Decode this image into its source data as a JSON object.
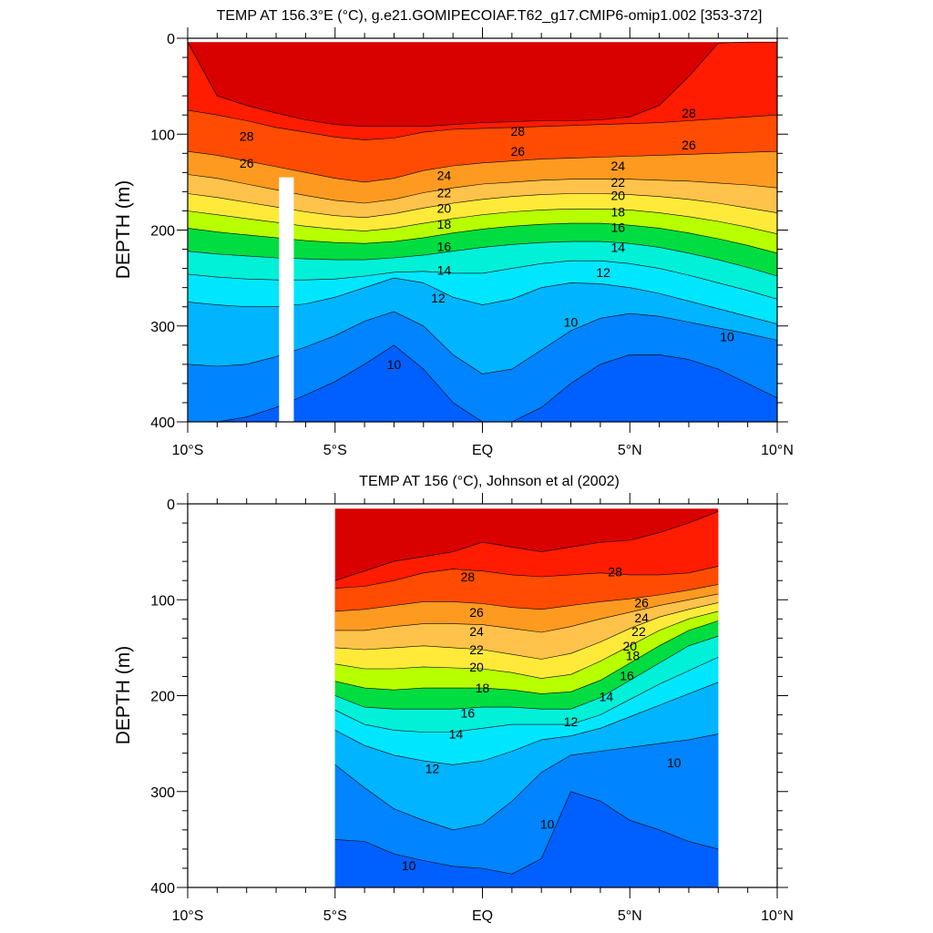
{
  "panels": [
    {
      "title": "TEMP AT 156.3°E (°C), g.e21.GOMIPECOIAF.T62_g17.CMIP6-omip1.002 [353-372]",
      "ylabel": "DEPTH (m)",
      "yticks": [
        "0",
        "100",
        "200",
        "300",
        "400"
      ],
      "xticks": [
        "10°S",
        "5°S",
        "EQ",
        "5°N",
        "10°N"
      ]
    },
    {
      "title": "TEMP AT 156 (°C), Johnson et al (2002)",
      "ylabel": "DEPTH (m)",
      "yticks": [
        "0",
        "100",
        "200",
        "300",
        "400"
      ],
      "xticks": [
        "10°S",
        "5°S",
        "EQ",
        "5°N",
        "10°N"
      ]
    }
  ],
  "chart_data": [
    {
      "type": "heatmap",
      "title": "TEMP AT 156.3°E (°C), g.e21.GOMIPECOIAF.T62_g17.CMIP6-omip1.002 [353-372]",
      "xlabel": "",
      "ylabel": "DEPTH (m)",
      "xlim": [
        -10,
        10
      ],
      "ylim": [
        0,
        400
      ],
      "y_reversed": true,
      "x_tick_labels": [
        "10°S",
        "5°S",
        "EQ",
        "5°N",
        "10°N"
      ],
      "contour_levels": [
        9,
        10,
        11,
        12,
        13,
        14,
        15,
        16,
        17,
        18,
        19,
        20,
        21,
        22,
        23,
        24,
        25,
        26,
        27,
        28,
        29
      ],
      "x": [
        -10,
        -9,
        -8,
        -7,
        -6,
        -5,
        -4,
        -3,
        -2,
        -1,
        0,
        1,
        2,
        3,
        4,
        5,
        6,
        7,
        8,
        9,
        10
      ],
      "isotherms": [
        {
          "temp": 29,
          "depth": [
            4,
            60,
            70,
            78,
            85,
            90,
            92,
            92,
            92,
            90,
            88,
            87,
            86,
            86,
            85,
            82,
            70,
            40,
            5,
            0,
            0
          ]
        },
        {
          "temp": 28,
          "depth": [
            75,
            80,
            86,
            93,
            98,
            103,
            106,
            104,
            98,
            95,
            94,
            93,
            92,
            91,
            90,
            89,
            88,
            86,
            84,
            82,
            80
          ]
        },
        {
          "temp": 26,
          "depth": [
            118,
            122,
            128,
            134,
            140,
            146,
            150,
            146,
            138,
            133,
            130,
            128,
            126,
            125,
            124,
            123,
            122,
            121,
            120,
            119,
            118
          ]
        },
        {
          "temp": 24,
          "depth": [
            142,
            146,
            152,
            158,
            164,
            169,
            172,
            168,
            161,
            156,
            152,
            150,
            148,
            147,
            147,
            147,
            148,
            149,
            151,
            153,
            156
          ]
        },
        {
          "temp": 22,
          "depth": [
            162,
            166,
            171,
            176,
            181,
            185,
            187,
            183,
            177,
            172,
            168,
            165,
            163,
            162,
            162,
            163,
            165,
            168,
            172,
            177,
            182
          ]
        },
        {
          "temp": 20,
          "depth": [
            180,
            184,
            188,
            192,
            196,
            199,
            201,
            198,
            193,
            188,
            184,
            181,
            179,
            178,
            178,
            179,
            182,
            186,
            191,
            197,
            204
          ]
        },
        {
          "temp": 18,
          "depth": [
            198,
            202,
            205,
            208,
            211,
            213,
            214,
            212,
            208,
            203,
            199,
            196,
            194,
            193,
            193,
            195,
            198,
            203,
            209,
            216,
            224
          ]
        },
        {
          "temp": 16,
          "depth": [
            222,
            225,
            227,
            229,
            230,
            231,
            231,
            229,
            226,
            222,
            218,
            215,
            213,
            212,
            212,
            214,
            218,
            224,
            231,
            239,
            248
          ]
        },
        {
          "temp": 14,
          "depth": [
            246,
            249,
            251,
            252,
            252,
            251,
            248,
            244,
            243,
            245,
            245,
            240,
            235,
            232,
            232,
            235,
            240,
            247,
            255,
            263,
            272
          ]
        },
        {
          "temp": 12,
          "depth": [
            275,
            278,
            280,
            280,
            277,
            270,
            260,
            250,
            255,
            270,
            278,
            272,
            260,
            255,
            256,
            260,
            266,
            274,
            282,
            290,
            298
          ]
        },
        {
          "temp": 10,
          "depth": [
            340,
            342,
            340,
            332,
            322,
            310,
            295,
            285,
            300,
            330,
            350,
            345,
            325,
            305,
            292,
            287,
            290,
            296,
            302,
            308,
            315
          ]
        },
        {
          "temp": 9,
          "depth": [
            400,
            400,
            395,
            385,
            372,
            358,
            340,
            320,
            345,
            380,
            400,
            400,
            385,
            360,
            340,
            330,
            330,
            335,
            345,
            360,
            375
          ]
        }
      ],
      "missing": [
        {
          "x_from": -6.9,
          "x_to": -6.4,
          "depth_from": 145,
          "depth_to": 400
        }
      ],
      "contour_labels": [
        {
          "x": -8.0,
          "depth": 102,
          "label": "28"
        },
        {
          "x": 1.2,
          "depth": 97,
          "label": "28"
        },
        {
          "x": 7.0,
          "depth": 78,
          "label": "28"
        },
        {
          "x": -8.0,
          "depth": 130,
          "label": "26"
        },
        {
          "x": 1.2,
          "depth": 118,
          "label": "26"
        },
        {
          "x": 7.0,
          "depth": 111,
          "label": "26"
        },
        {
          "x": -1.3,
          "depth": 143,
          "label": "24"
        },
        {
          "x": 4.6,
          "depth": 133,
          "label": "24"
        },
        {
          "x": -1.3,
          "depth": 161,
          "label": "22"
        },
        {
          "x": 4.6,
          "depth": 150,
          "label": "22"
        },
        {
          "x": -1.3,
          "depth": 177,
          "label": "20"
        },
        {
          "x": 4.6,
          "depth": 164,
          "label": "20"
        },
        {
          "x": -1.3,
          "depth": 194,
          "label": "18"
        },
        {
          "x": 4.6,
          "depth": 181,
          "label": "18"
        },
        {
          "x": -1.3,
          "depth": 217,
          "label": "16"
        },
        {
          "x": 4.6,
          "depth": 197,
          "label": "16"
        },
        {
          "x": -1.3,
          "depth": 242,
          "label": "14"
        },
        {
          "x": 4.6,
          "depth": 218,
          "label": "14"
        },
        {
          "x": -1.5,
          "depth": 271,
          "label": "12"
        },
        {
          "x": 4.1,
          "depth": 244,
          "label": "12"
        },
        {
          "x": -3.0,
          "depth": 340,
          "label": "10"
        },
        {
          "x": 3.0,
          "depth": 296,
          "label": "10"
        },
        {
          "x": 8.3,
          "depth": 311,
          "label": "10"
        }
      ]
    },
    {
      "type": "heatmap",
      "title": "TEMP AT 156 (°C), Johnson et al (2002)",
      "xlabel": "",
      "ylabel": "DEPTH (m)",
      "xlim": [
        -10,
        10
      ],
      "ylim": [
        0,
        400
      ],
      "y_reversed": true,
      "x_tick_labels": [
        "10°S",
        "5°S",
        "EQ",
        "5°N",
        "10°N"
      ],
      "data_extent": {
        "x_from": -5,
        "x_to": 8,
        "depth_from": 5,
        "depth_to": 400
      },
      "contour_levels": [
        9,
        10,
        11,
        12,
        13,
        14,
        15,
        16,
        17,
        18,
        19,
        20,
        21,
        22,
        23,
        24,
        25,
        26,
        27,
        28,
        29
      ],
      "x": [
        -5,
        -4,
        -3,
        -2,
        -1,
        0,
        1,
        2,
        3,
        4,
        5,
        6,
        7,
        8
      ],
      "isotherms": [
        {
          "temp": 29,
          "depth": [
            80,
            70,
            60,
            55,
            50,
            40,
            45,
            50,
            45,
            40,
            38,
            30,
            20,
            8
          ]
        },
        {
          "temp": 28,
          "depth": [
            88,
            86,
            80,
            72,
            68,
            70,
            74,
            76,
            74,
            72,
            74,
            74,
            72,
            65
          ]
        },
        {
          "temp": 26,
          "depth": [
            112,
            110,
            106,
            102,
            102,
            104,
            108,
            110,
            106,
            102,
            99,
            95,
            90,
            84
          ]
        },
        {
          "temp": 24,
          "depth": [
            132,
            132,
            128,
            125,
            125,
            126,
            130,
            134,
            128,
            120,
            113,
            106,
            100,
            94
          ]
        },
        {
          "temp": 22,
          "depth": [
            150,
            152,
            150,
            148,
            150,
            152,
            157,
            162,
            156,
            144,
            130,
            118,
            110,
            103
          ]
        },
        {
          "temp": 20,
          "depth": [
            167,
            172,
            172,
            170,
            171,
            172,
            176,
            182,
            178,
            164,
            148,
            132,
            120,
            112
          ]
        },
        {
          "temp": 18,
          "depth": [
            185,
            192,
            194,
            192,
            192,
            192,
            194,
            198,
            196,
            184,
            166,
            148,
            132,
            122
          ]
        },
        {
          "temp": 16,
          "depth": [
            200,
            212,
            214,
            214,
            214,
            212,
            212,
            214,
            214,
            202,
            184,
            166,
            148,
            138
          ]
        },
        {
          "temp": 14,
          "depth": [
            215,
            230,
            236,
            238,
            238,
            234,
            230,
            230,
            230,
            220,
            204,
            188,
            174,
            160
          ]
        },
        {
          "temp": 12,
          "depth": [
            236,
            252,
            262,
            268,
            272,
            268,
            258,
            246,
            242,
            234,
            222,
            210,
            198,
            186
          ]
        },
        {
          "temp": 10,
          "depth": [
            272,
            296,
            318,
            330,
            340,
            334,
            310,
            280,
            262,
            258,
            254,
            250,
            246,
            240
          ]
        },
        {
          "temp": 9,
          "depth": [
            350,
            352,
            365,
            372,
            378,
            380,
            386,
            370,
            300,
            310,
            330,
            340,
            352,
            360
          ]
        }
      ],
      "contour_labels": [
        {
          "x": -0.5,
          "depth": 76,
          "label": "28"
        },
        {
          "x": 4.5,
          "depth": 71,
          "label": "28"
        },
        {
          "x": -0.2,
          "depth": 113,
          "label": "26"
        },
        {
          "x": 5.4,
          "depth": 103,
          "label": "26"
        },
        {
          "x": -0.2,
          "depth": 133,
          "label": "24"
        },
        {
          "x": 5.4,
          "depth": 119,
          "label": "24"
        },
        {
          "x": -0.2,
          "depth": 152,
          "label": "22"
        },
        {
          "x": 5.3,
          "depth": 133,
          "label": "22"
        },
        {
          "x": -0.2,
          "depth": 170,
          "label": "20"
        },
        {
          "x": 5.0,
          "depth": 148,
          "label": "20"
        },
        {
          "x": 0.0,
          "depth": 192,
          "label": "18"
        },
        {
          "x": 5.1,
          "depth": 158,
          "label": "18"
        },
        {
          "x": -0.5,
          "depth": 218,
          "label": "16"
        },
        {
          "x": 4.9,
          "depth": 179,
          "label": "16"
        },
        {
          "x": -0.9,
          "depth": 240,
          "label": "14"
        },
        {
          "x": 4.2,
          "depth": 201,
          "label": "14"
        },
        {
          "x": -1.7,
          "depth": 276,
          "label": "12"
        },
        {
          "x": 3.0,
          "depth": 227,
          "label": "12"
        },
        {
          "x": 2.2,
          "depth": 334,
          "label": "10"
        },
        {
          "x": -2.5,
          "depth": 377,
          "label": "10"
        },
        {
          "x": 6.5,
          "depth": 270,
          "label": "10"
        }
      ]
    }
  ]
}
